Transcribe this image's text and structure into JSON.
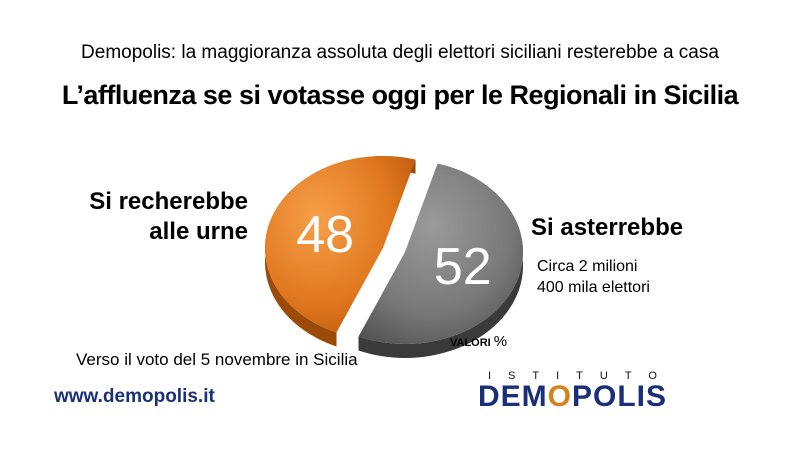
{
  "header": {
    "subtitle": "Demopolis: la maggioranza assoluta degli elettori siciliani resterebbe a casa",
    "title": "L’affluenza se si votasse oggi per le Regionali in Sicilia"
  },
  "chart_data": {
    "type": "pie",
    "title": "L’affluenza se si votasse oggi per le Regionali in Sicilia",
    "unit_label": "VALORI",
    "unit_symbol": "%",
    "slices": [
      {
        "label_line1": "Si recherebbe",
        "label_line2": "alle urne",
        "value": 48,
        "value_text": "48",
        "color": "#e0781f"
      },
      {
        "label": "Si asterrebbe",
        "value": 52,
        "value_text": "52",
        "color": "#7a7a7a",
        "note_line1": "Circa 2 milioni",
        "note_line2": "400 mila elettori"
      }
    ]
  },
  "footer": {
    "context": "Verso il voto del 5 novembre in Sicilia",
    "url": "www.demopolis.it",
    "logo_top": "ISTITUTO",
    "logo_main_a": "DEM",
    "logo_main_o": "O",
    "logo_main_b": "POLIS"
  },
  "colors": {
    "orange": "#e0781f",
    "grey": "#7a7a7a",
    "brand_blue": "#1a2f78"
  }
}
